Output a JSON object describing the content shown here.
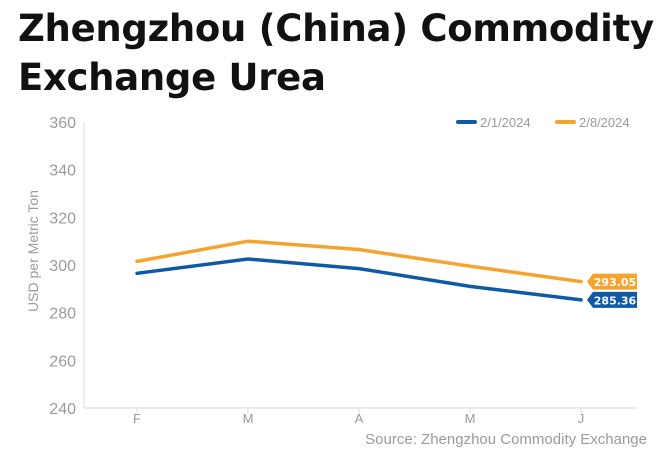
{
  "title": "Zhengzhou (China) Commodity Exchange Urea",
  "source": "Source: Zhengzhou Commodity Exchange",
  "colors": {
    "series_1": "#0f5aa6",
    "series_2": "#f4a42e",
    "axis": "#d9d9d9",
    "tick_text": "#9a9a9a"
  },
  "chart_data": {
    "type": "line",
    "categories": [
      "F",
      "M",
      "A",
      "M",
      "J"
    ],
    "ylabel": "USD per Metric Ton",
    "ylim": [
      240,
      360
    ],
    "yticks": [
      240,
      260,
      280,
      300,
      320,
      340,
      360
    ],
    "grid": false,
    "legend_position": "top-right",
    "series": [
      {
        "name": "2/1/2024",
        "color": "#0f5aa6",
        "values": [
          296.5,
          302.5,
          298.5,
          291,
          285.36
        ],
        "end_label": "285.36"
      },
      {
        "name": "2/8/2024",
        "color": "#f4a42e",
        "values": [
          301.5,
          310,
          306.5,
          299.5,
          293.05
        ],
        "end_label": "293.05"
      }
    ]
  }
}
